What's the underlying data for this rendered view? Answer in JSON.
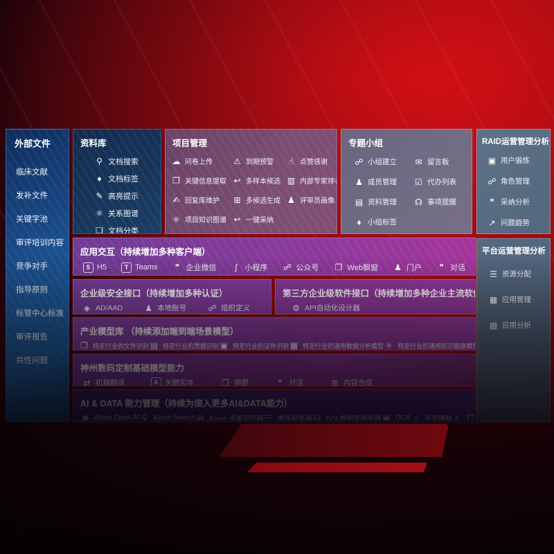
{
  "colors": {
    "background_red": "#ab0c12",
    "sidebar_blue": "#1a63a6",
    "repository_navy": "#1b3d64",
    "project_mauve": "#7b4e72",
    "topic_gray": "#766f87",
    "raid_slate": "#5d7187",
    "row_purple": "#8a3a9c",
    "aidata_indigo": "#4a2a80",
    "aidata_bottom_line": "#3350b4"
  },
  "icon_glyphs": {
    "doc-search": "⚲",
    "doc-tag": "♦",
    "highlight-pen": "✎",
    "knowledge-graph": "⚛",
    "doc-copy": "❏",
    "cloud-upload": "☁",
    "alarm": "⚠",
    "thumbs-up": "☝",
    "doc-extract": "❐",
    "reply-arrow": "↩",
    "ranking": "▥",
    "pen-write": "✍",
    "grid-plus": "⊞",
    "person": "♟",
    "adopt-arrow": "↩",
    "people": "☍",
    "message-board": "✉",
    "person-add": "♟",
    "todo-list": "☑",
    "album": "▤",
    "bell": "☊",
    "tag": "♦",
    "id-card": "▣",
    "chat-qa": "❞",
    "trend-chart": "↗",
    "list": "☰",
    "app-grid": "▦",
    "app-chart": "▧",
    "h5": "5",
    "teams": "T",
    "wechat-work": "❞",
    "mini-program": "∫",
    "official-account": "☍",
    "web-window": "❐",
    "portal": "♟",
    "chat": "❞",
    "ad-diamond": "◈",
    "local-account": "♟",
    "org-define": "☍",
    "api-gear": "⚙",
    "doc-file": "❐",
    "doc-lines": "▤",
    "data-model": "▦",
    "translate": "⇄",
    "entity-shield": "A",
    "summary-doc": "❐",
    "compose-grid": "⊞",
    "openai": "❋",
    "azure-search": "⚲",
    "form-recognizer": "▤",
    "cache-server": "☷",
    "sql-database": "⛁",
    "ocr": "▣",
    "speech": "♫",
    "tts": "♬"
  },
  "panels": {
    "external_files": {
      "title": "外部文件",
      "items": [
        {
          "label": "临床文献"
        },
        {
          "label": "发补文件"
        },
        {
          "label": "关键字池"
        },
        {
          "label": "审评培训内容"
        },
        {
          "label": "竞争对手"
        },
        {
          "label": "指导原则"
        },
        {
          "label": "标管中心标准"
        },
        {
          "label": "审评报告"
        },
        {
          "label": "共性问题"
        }
      ]
    },
    "repository": {
      "title": "资料库",
      "items": [
        {
          "label": "文档搜索",
          "icon": "doc-search"
        },
        {
          "label": "文档标签",
          "icon": "doc-tag"
        },
        {
          "label": "高亮提示",
          "icon": "highlight-pen"
        },
        {
          "label": "关系图谱",
          "icon": "knowledge-graph"
        },
        {
          "label": "文档分类",
          "icon": "doc-copy"
        }
      ]
    },
    "project_management": {
      "title": "项目管理",
      "items": [
        {
          "label": "问卷上传",
          "icon": "cloud-upload"
        },
        {
          "label": "到期预警",
          "icon": "alarm"
        },
        {
          "label": "点赞感谢",
          "icon": "thumbs-up"
        },
        {
          "label": "关键信息提取",
          "icon": "doc-extract"
        },
        {
          "label": "多样本候选",
          "icon": "reply-arrow"
        },
        {
          "label": "内部专家排名",
          "icon": "ranking"
        },
        {
          "label": "回复库维护",
          "icon": "pen-write"
        },
        {
          "label": "多候选生成",
          "icon": "grid-plus"
        },
        {
          "label": "评审员画像",
          "icon": "person"
        },
        {
          "label": "项目知识图谱",
          "icon": "knowledge-graph"
        },
        {
          "label": "一键采纳",
          "icon": "adopt-arrow"
        }
      ]
    },
    "topic_groups": {
      "title": "专题小组",
      "items": [
        {
          "label": "小组建立",
          "icon": "people"
        },
        {
          "label": "留言板",
          "icon": "message-board"
        },
        {
          "label": "成员管理",
          "icon": "person-add"
        },
        {
          "label": "代办列表",
          "icon": "todo-list"
        },
        {
          "label": "资料管理",
          "icon": "album"
        },
        {
          "label": "事项提醒",
          "icon": "bell"
        },
        {
          "label": "小组标签",
          "icon": "tag"
        }
      ]
    },
    "raid_analysis": {
      "title": "RAID运营管理分析",
      "items": [
        {
          "label": "用户锻炼",
          "icon": "id-card"
        },
        {
          "label": "角色管理",
          "icon": "people"
        },
        {
          "label": "采纳分析",
          "icon": "chat-qa"
        },
        {
          "label": "问题趋势",
          "icon": "trend-chart"
        }
      ]
    },
    "platform_analysis": {
      "title": "平台运营管理分析",
      "items": [
        {
          "label": "资源分配",
          "icon": "list"
        },
        {
          "label": "应用管理",
          "icon": "app-grid"
        },
        {
          "label": "应用分析",
          "icon": "app-chart"
        }
      ]
    },
    "interaction": {
      "title": "应用交互（持续增加多种客户端）",
      "items": [
        {
          "label": "H5",
          "icon": "h5"
        },
        {
          "label": "Teams",
          "icon": "teams"
        },
        {
          "label": "企业微信",
          "icon": "wechat-work"
        },
        {
          "label": "小程序",
          "icon": "mini-program"
        },
        {
          "label": "公众号",
          "icon": "official-account"
        },
        {
          "label": "Web飘窗",
          "icon": "web-window"
        },
        {
          "label": "门户",
          "icon": "portal"
        },
        {
          "label": "对话",
          "icon": "chat"
        }
      ]
    },
    "security_interface": {
      "title": "企业级安全接口（持续增加多种认证）",
      "items": [
        {
          "label": "AD/AAD",
          "icon": "ad-diamond"
        },
        {
          "label": "本地账号",
          "icon": "local-account"
        },
        {
          "label": "组织定义",
          "icon": "org-define"
        }
      ]
    },
    "third_party_interface": {
      "title": "第三方企业级软件接口（持续增加多种企业主流软件接口）",
      "items": [
        {
          "label": "API自动化设计器",
          "icon": "api-gear"
        }
      ]
    },
    "industry_models": {
      "title": "产业模型库 （持续添加端到端场景模型）",
      "items": [
        {
          "label": "特定行业的文件识别",
          "icon": "doc-file"
        },
        {
          "label": "特定行业的票据识别",
          "icon": "doc-lines"
        },
        {
          "label": "特定行业的证件识别",
          "icon": "id-card"
        },
        {
          "label": "特定行业的通用数据分析模型",
          "icon": "data-model"
        },
        {
          "label": "特定行业的通用知识图谱模型",
          "icon": "knowledge-graph"
        }
      ]
    },
    "base_models": {
      "title": "神州数码定制基础模型能力",
      "items": [
        {
          "label": "机器翻译",
          "icon": "translate"
        },
        {
          "label": "关键实体",
          "icon": "entity-shield"
        },
        {
          "label": "摘要",
          "icon": "summary-doc"
        },
        {
          "label": "对话",
          "icon": "chat"
        },
        {
          "label": "内容合成",
          "icon": "compose-grid"
        }
      ]
    },
    "ai_data": {
      "title": "AI & DATA 能力管理（持续为接入更多AI&DATA能力）",
      "items": [
        {
          "label": "Azure Open AI",
          "icon": "openai"
        },
        {
          "label": "Azure Search",
          "icon": "azure-search"
        },
        {
          "label": "Azure 表单识别器",
          "icon": "form-recognizer"
        },
        {
          "label": "缓存服务器",
          "icon": "cache-server"
        },
        {
          "label": "SQL数据库服务器",
          "icon": "sql-database"
        },
        {
          "label": "OCR",
          "icon": "ocr"
        },
        {
          "label": "语音理解",
          "icon": "speech"
        },
        {
          "label": "TTS",
          "icon": "tts"
        }
      ]
    }
  }
}
